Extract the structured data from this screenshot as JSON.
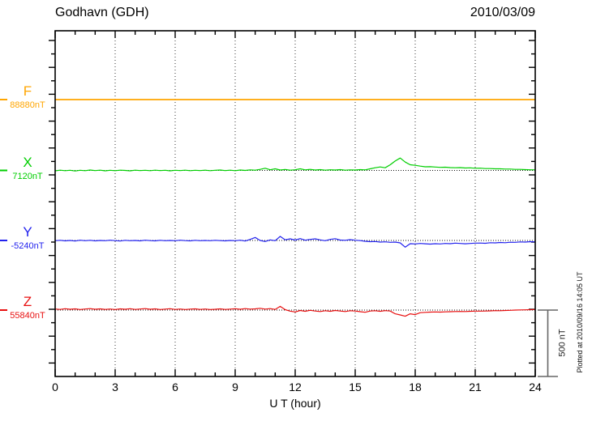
{
  "header": {
    "title": "Godhavn (GDH)",
    "date": "2010/03/09"
  },
  "axes": {
    "x_label": "U T (hour)",
    "x_ticks": [
      "0",
      "3",
      "6",
      "9",
      "12",
      "15",
      "18",
      "21",
      "24"
    ]
  },
  "scale_bar": {
    "label": "500 nT"
  },
  "note": {
    "plotted_at": "Plotted at 2010/09/16 14:05 UT"
  },
  "colors": {
    "F": "#FFA500",
    "X": "#00CE00",
    "Y": "#2222EE",
    "Z": "#E81010",
    "frame": "#000000",
    "grid": "#333333",
    "baseline": "#111111",
    "scalebar": "#666666"
  },
  "chart_data": {
    "type": "line",
    "title": "Godhavn (GDH)",
    "date": "2010/03/09",
    "xlabel": "U T (hour)",
    "x_range_hours": [
      0,
      24
    ],
    "x_tick_step_hours": 3,
    "grid": "vertical-dotted-every-3h",
    "scale_bar_nT": 500,
    "x_start_hours": 0,
    "x_step_hours": 0.25,
    "series": [
      {
        "name": "F",
        "baseline_label": "88880nT",
        "baseline_nT": 88880,
        "color": "#FFA500",
        "x_hours": [
          0,
          24
        ],
        "offsets_nT": [
          0,
          0
        ]
      },
      {
        "name": "X",
        "baseline_label": "7120nT",
        "baseline_nT": 7120,
        "color": "#00CE00",
        "offsets_nT": [
          -3,
          2,
          -2,
          1,
          -4,
          1,
          -2,
          3,
          -1,
          2,
          -3,
          1,
          -2,
          2,
          0,
          -3,
          2,
          -1,
          1,
          -2,
          2,
          -1,
          1,
          -3,
          1,
          -1,
          2,
          -2,
          1,
          -1,
          2,
          -2,
          1,
          3,
          -1,
          2,
          -2,
          3,
          0,
          4,
          2,
          8,
          16,
          5,
          12,
          3,
          7,
          2,
          5,
          12,
          4,
          8,
          3,
          6,
          2,
          5,
          3,
          6,
          2,
          4,
          3,
          6,
          4,
          12,
          20,
          26,
          20,
          42,
          70,
          92,
          62,
          42,
          38,
          32,
          27,
          28,
          25,
          23,
          24,
          21,
          20,
          21,
          18,
          19,
          16,
          17,
          14,
          14,
          12,
          12,
          10,
          10,
          8,
          8,
          6,
          5,
          4
        ]
      },
      {
        "name": "Y",
        "baseline_label": "-5240nT",
        "baseline_nT": -5240,
        "color": "#2222EE",
        "offsets_nT": [
          -2,
          1,
          -3,
          0,
          -4,
          2,
          -2,
          1,
          -3,
          0,
          -2,
          2,
          -1,
          -4,
          1,
          -2,
          0,
          -3,
          2,
          -1,
          -3,
          1,
          -2,
          0,
          -2,
          2,
          -1,
          -3,
          1,
          -2,
          0,
          -2,
          1,
          -1,
          -3,
          0,
          -2,
          2,
          -4,
          8,
          22,
          0,
          -8,
          4,
          -2,
          30,
          5,
          12,
          3,
          14,
          2,
          8,
          12,
          4,
          -2,
          8,
          13,
          3,
          1,
          6,
          2,
          -1,
          -6,
          -9,
          -8,
          -12,
          -10,
          -14,
          -12,
          -18,
          -50,
          -24,
          -26,
          -22,
          -25,
          -27,
          -24,
          -26,
          -22,
          -24,
          -20,
          -22,
          -25,
          -22,
          -20,
          -19,
          -21,
          -17,
          -18,
          -15,
          -17,
          -13,
          -14,
          -11,
          -12,
          -9,
          -10
        ]
      },
      {
        "name": "Z",
        "baseline_label": "55840nT",
        "baseline_nT": 55840,
        "color": "#E81010",
        "offsets_nT": [
          8,
          5,
          10,
          6,
          9,
          4,
          8,
          11,
          6,
          9,
          5,
          8,
          4,
          9,
          6,
          10,
          5,
          8,
          11,
          6,
          9,
          4,
          7,
          10,
          5,
          8,
          4,
          7,
          9,
          5,
          8,
          4,
          6,
          9,
          5,
          7,
          10,
          6,
          11,
          7,
          9,
          13,
          7,
          11,
          5,
          28,
          3,
          -8,
          -14,
          -3,
          -9,
          -2,
          -7,
          -11,
          -5,
          -9,
          -3,
          -7,
          -11,
          -5,
          -7,
          -12,
          -16,
          -7,
          -5,
          -9,
          -4,
          -7,
          -28,
          -36,
          -46,
          -28,
          -34,
          -19,
          -17,
          -15,
          -14,
          -15,
          -13,
          -12,
          -11,
          -10,
          -11,
          -9,
          -8,
          -8,
          -7,
          -6,
          -4,
          -5,
          -3,
          -2,
          0,
          1,
          2,
          3,
          4
        ]
      }
    ]
  }
}
